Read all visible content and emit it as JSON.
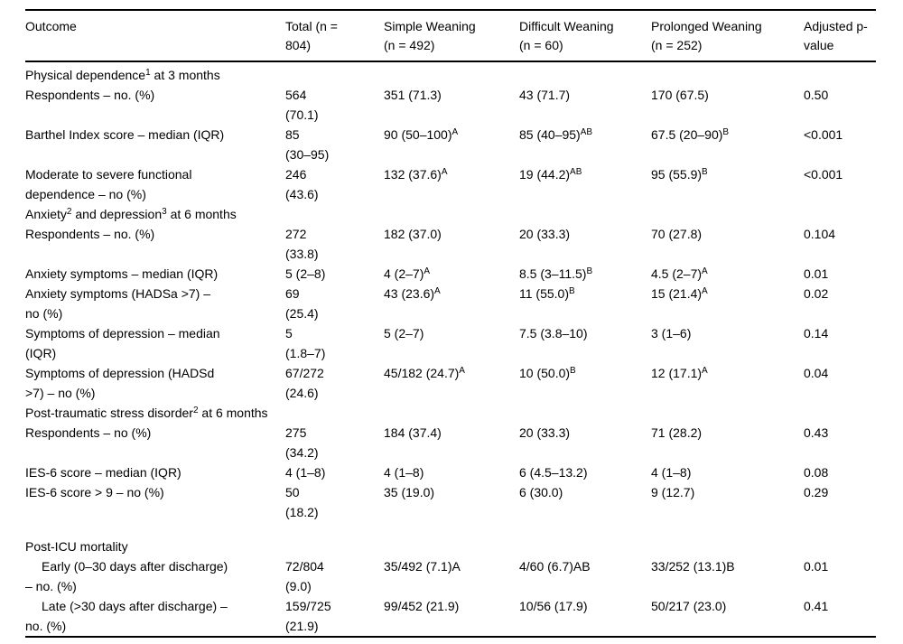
{
  "page": {
    "background": "#ffffff",
    "text_color": "#000000",
    "rule_color": "#000000"
  },
  "table": {
    "columns": [
      {
        "id": "outcome",
        "label": "Outcome"
      },
      {
        "id": "total",
        "label": "Total (n =\n804)"
      },
      {
        "id": "simple",
        "label": "Simple Weaning\n(n = 492)"
      },
      {
        "id": "difficult",
        "label": "Difficult Weaning\n(n = 60)"
      },
      {
        "id": "prolonged",
        "label": "Prolonged Weaning\n(n = 252)"
      },
      {
        "id": "pvalue",
        "label": "Adjusted p-\nvalue"
      }
    ],
    "rows": [
      {
        "type": "section",
        "label": "Physical dependence^{1} at 3 months"
      },
      {
        "type": "data",
        "label": "Respondents – no. (%)",
        "cells": [
          "564\n(70.1)",
          "351 (71.3)",
          "43 (71.7)",
          "170 (67.5)",
          "0.50"
        ]
      },
      {
        "type": "data",
        "label": "Barthel Index score – median (IQR)",
        "cells": [
          "85\n(30–95)",
          "90 (50–100)^{A}",
          "85 (40–95)^{AB}",
          "67.5 (20–90)^{B}",
          "<0.001"
        ]
      },
      {
        "type": "data",
        "label": "Moderate to severe functional\ndependence – no (%)",
        "cells": [
          "246\n(43.6)",
          "132 (37.6)^{A}",
          "19 (44.2)^{AB}",
          "95 (55.9)^{B}",
          "<0.001"
        ]
      },
      {
        "type": "section",
        "label": "Anxiety^{2} and depression^{3} at 6 months"
      },
      {
        "type": "data",
        "label": "Respondents – no. (%)",
        "cells": [
          "272\n(33.8)",
          "182 (37.0)",
          "20 (33.3)",
          "70 (27.8)",
          "0.104"
        ]
      },
      {
        "type": "data",
        "label": "Anxiety symptoms – median (IQR)",
        "cells": [
          "5 (2–8)",
          "4 (2–7)^{A}",
          "8.5 (3–11.5)^{B}",
          "4.5 (2–7)^{A}",
          "0.01"
        ]
      },
      {
        "type": "data",
        "label": "Anxiety symptoms (HADSa >7) –\nno (%)",
        "cells": [
          "69\n(25.4)",
          "43 (23.6)^{A}",
          "11 (55.0)^{B}",
          "15 (21.4)^{A}",
          "0.02"
        ]
      },
      {
        "type": "data",
        "label": "Symptoms of depression – median\n(IQR)",
        "cells": [
          "5\n(1.8–7)",
          "5 (2–7)",
          "7.5 (3.8–10)",
          "3 (1–6)",
          "0.14"
        ]
      },
      {
        "type": "data",
        "label": "Symptoms of depression (HADSd\n>7) – no (%)",
        "cells": [
          "67/272\n(24.6)",
          "45/182 (24.7)^{A}",
          "10 (50.0)^{B}",
          "12 (17.1)^{A}",
          "0.04"
        ]
      },
      {
        "type": "section",
        "label": "Post-traumatic stress disorder^{2} at 6 months"
      },
      {
        "type": "data",
        "label": "Respondents – no (%)",
        "cells": [
          "275\n(34.2)",
          "184 (37.4)",
          "20 (33.3)",
          "71 (28.2)",
          "0.43"
        ]
      },
      {
        "type": "data",
        "label": "IES-6 score – median (IQR)",
        "cells": [
          "4 (1–8)",
          "4 (1–8)",
          "6 (4.5–13.2)",
          "4 (1–8)",
          "0.08"
        ]
      },
      {
        "type": "data",
        "label": "IES-6 score > 9 – no (%)",
        "cells": [
          "50\n(18.2)",
          "35 (19.0)",
          "6 (30.0)",
          "9 (12.7)",
          "0.29"
        ]
      },
      {
        "type": "section",
        "label": "Post-ICU mortality",
        "gap_above": true
      },
      {
        "type": "data",
        "label": "Early (0–30 days after discharge)\n– no. (%)",
        "indent_first_line": true,
        "cells": [
          "72/804\n(9.0)",
          "35/492 (7.1)A",
          "4/60 (6.7)AB",
          "33/252 (13.1)B",
          "0.01"
        ]
      },
      {
        "type": "data",
        "label": "Late (>30 days after discharge) –\nno. (%)",
        "indent_first_line": true,
        "cells": [
          "159/725\n(21.9)",
          "99/452 (21.9)",
          "10/56 (17.9)",
          "50/217 (23.0)",
          "0.41"
        ]
      }
    ]
  }
}
